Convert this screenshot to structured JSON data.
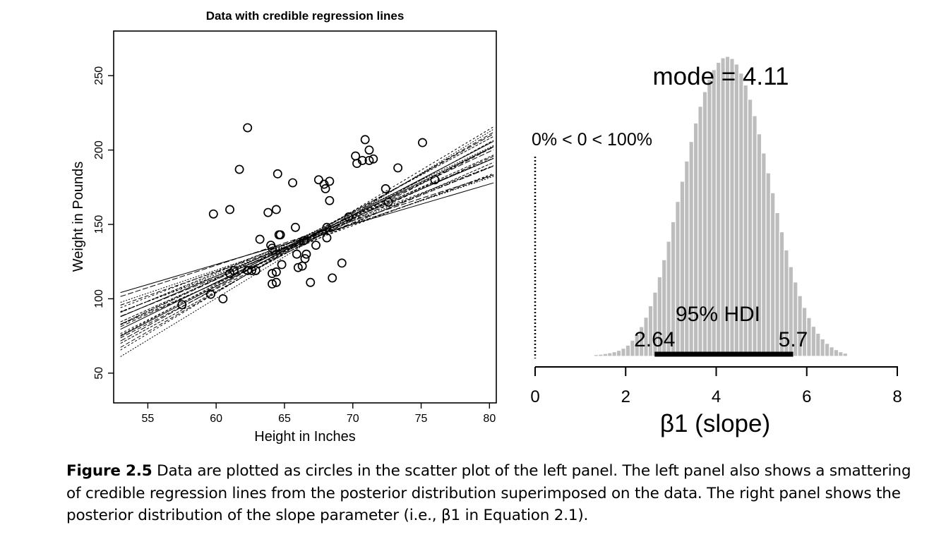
{
  "chart_data": [
    {
      "type": "scatter",
      "title": "Data with credible regression lines",
      "xlabel": "Height in Inches",
      "ylabel": "Weight in Pounds",
      "xlim": [
        52.5,
        80.5
      ],
      "ylim": [
        30,
        280
      ],
      "xticks": [
        55,
        60,
        65,
        70,
        75,
        80
      ],
      "yticks": [
        50,
        100,
        150,
        200,
        250
      ],
      "points": [
        [
          57.5,
          96
        ],
        [
          59.6,
          103
        ],
        [
          59.8,
          157
        ],
        [
          60.5,
          100
        ],
        [
          61.0,
          160
        ],
        [
          61.0,
          117
        ],
        [
          61.3,
          119
        ],
        [
          61.7,
          187
        ],
        [
          62.3,
          215
        ],
        [
          62.3,
          119
        ],
        [
          62.6,
          119
        ],
        [
          62.9,
          119
        ],
        [
          63.2,
          140
        ],
        [
          63.8,
          158
        ],
        [
          64.0,
          136
        ],
        [
          64.1,
          134
        ],
        [
          64.1,
          110
        ],
        [
          64.1,
          117
        ],
        [
          64.4,
          118
        ],
        [
          64.4,
          111
        ],
        [
          64.4,
          160
        ],
        [
          64.5,
          184
        ],
        [
          64.6,
          143
        ],
        [
          64.7,
          143
        ],
        [
          64.8,
          123
        ],
        [
          65.6,
          178
        ],
        [
          65.8,
          148
        ],
        [
          65.9,
          130
        ],
        [
          66.0,
          121
        ],
        [
          66.3,
          122
        ],
        [
          66.4,
          139
        ],
        [
          66.5,
          127
        ],
        [
          66.6,
          130
        ],
        [
          66.9,
          111
        ],
        [
          67.3,
          136
        ],
        [
          67.5,
          180
        ],
        [
          67.9,
          177
        ],
        [
          68.0,
          174
        ],
        [
          68.1,
          148
        ],
        [
          68.1,
          141
        ],
        [
          68.3,
          166
        ],
        [
          68.3,
          179
        ],
        [
          68.5,
          114
        ],
        [
          69.2,
          124
        ],
        [
          69.7,
          155
        ],
        [
          70.2,
          196
        ],
        [
          70.3,
          191
        ],
        [
          70.7,
          193
        ],
        [
          70.9,
          207
        ],
        [
          71.2,
          193
        ],
        [
          71.2,
          200
        ],
        [
          71.5,
          194
        ],
        [
          72.4,
          174
        ],
        [
          72.6,
          165
        ],
        [
          73.3,
          188
        ],
        [
          75.1,
          205
        ],
        [
          76.0,
          180
        ]
      ],
      "regression_lines": [
        [
          4.11,
          142.0
        ],
        [
          3.2,
          140.5
        ],
        [
          3.6,
          141.5
        ],
        [
          3.9,
          142.5
        ],
        [
          4.3,
          143.0
        ],
        [
          4.6,
          141.0
        ],
        [
          5.0,
          140.0
        ],
        [
          5.3,
          141.5
        ],
        [
          5.6,
          139.5
        ],
        [
          2.7,
          142.0
        ],
        [
          3.0,
          143.5
        ],
        [
          3.4,
          139.0
        ],
        [
          3.8,
          144.0
        ],
        [
          4.2,
          140.0
        ],
        [
          4.4,
          144.5
        ],
        [
          4.8,
          142.0
        ],
        [
          5.1,
          143.0
        ],
        [
          3.5,
          143.0
        ],
        [
          4.0,
          138.5
        ],
        [
          4.7,
          139.5
        ],
        [
          3.1,
          141.0
        ],
        [
          4.5,
          142.5
        ],
        [
          3.7,
          140.0
        ],
        [
          5.5,
          142.5
        ],
        [
          4.9,
          144.0
        ]
      ],
      "regression_lines_center_x": 67
    },
    {
      "type": "histogram",
      "title": "mode = 4.11",
      "xlabel": "β1 (slope)",
      "xlim": [
        0,
        8
      ],
      "xticks": [
        0,
        2,
        4,
        6,
        8
      ],
      "bin_width": 0.1,
      "bins_start": 1.3,
      "bin_densities": [
        0.005,
        0.006,
        0.008,
        0.01,
        0.013,
        0.017,
        0.023,
        0.032,
        0.046,
        0.063,
        0.085,
        0.112,
        0.145,
        0.184,
        0.228,
        0.277,
        0.33,
        0.386,
        0.444,
        0.502,
        0.56,
        0.616,
        0.669,
        0.717,
        0.759,
        0.794,
        0.822,
        0.843,
        0.856,
        0.86,
        0.854,
        0.838,
        0.812,
        0.778,
        0.737,
        0.69,
        0.638,
        0.583,
        0.526,
        0.469,
        0.412,
        0.357,
        0.305,
        0.257,
        0.213,
        0.174,
        0.14,
        0.111,
        0.086,
        0.066,
        0.05,
        0.037,
        0.027,
        0.019,
        0.013,
        0.009
      ],
      "mode": 4.11,
      "comparison_value": 0,
      "comparison_text": "0% < 0 < 100%",
      "hdi_label": "95% HDI",
      "hdi_low": 2.64,
      "hdi_high": 5.7,
      "hdi_low_text": "2.64",
      "hdi_high_text": "5.7"
    }
  ],
  "caption": {
    "label": "Figure 2.5",
    "text": "Data are plotted as circles in the scatter plot of the left panel. The left panel also shows a smattering of credible regression lines from the posterior distribution superimposed on the data. The right panel shows the posterior distribution of the slope parameter (i.e., β1 in Equation 2.1)."
  },
  "colors": {
    "ink": "#000000",
    "bar": "#bdbdbd",
    "bar_edge": "#ffffff"
  }
}
